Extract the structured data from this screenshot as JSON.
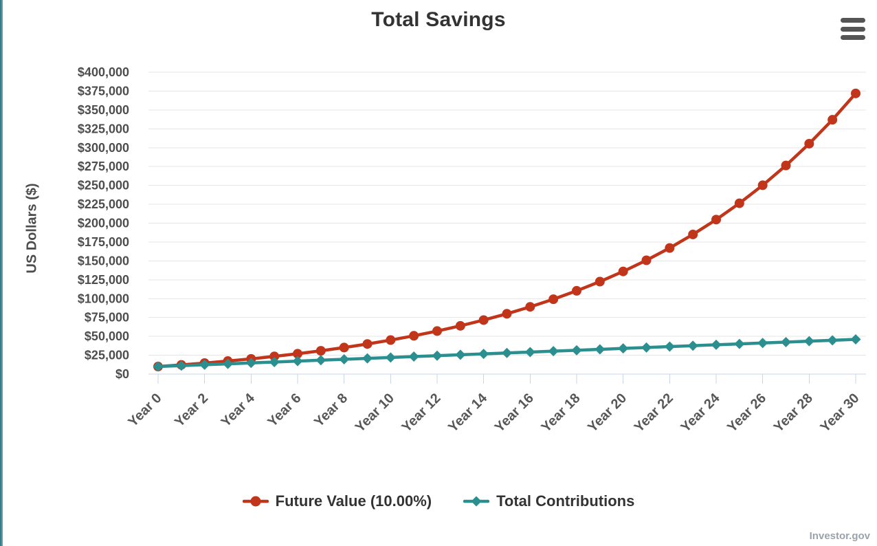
{
  "page": {
    "background": "#FFFFFF",
    "accent_stripe_color": "#2E8191",
    "credit": "Investor.gov"
  },
  "menu": {
    "label": "Chart context menu",
    "icon": "hamburger-icon",
    "bar_color": "#555555"
  },
  "chart_data": {
    "type": "line",
    "title": "Total Savings",
    "xlabel": "",
    "ylabel": "US Dollars ($)",
    "ylim": [
      0,
      400000
    ],
    "y_tick_step": 25000,
    "y_tick_prefix": "$",
    "x_tick_interval": 2,
    "grid": true,
    "legend_position": "bottom",
    "grid_color": "#E6E6E6",
    "axis_color": "#C9D4E7",
    "categories": [
      "Year 0",
      "Year 1",
      "Year 2",
      "Year 3",
      "Year 4",
      "Year 5",
      "Year 6",
      "Year 7",
      "Year 8",
      "Year 9",
      "Year 10",
      "Year 11",
      "Year 12",
      "Year 13",
      "Year 14",
      "Year 15",
      "Year 16",
      "Year 17",
      "Year 18",
      "Year 19",
      "Year 20",
      "Year 21",
      "Year 22",
      "Year 23",
      "Year 24",
      "Year 25",
      "Year 26",
      "Year 27",
      "Year 28",
      "Year 29",
      "Year 30"
    ],
    "series": [
      {
        "name": "Future Value (10.00%)",
        "color": "#C1351A",
        "marker": "circle",
        "values": [
          10000,
          12200,
          14620,
          17282,
          20210,
          23431,
          26974,
          30872,
          35159,
          39875,
          45062,
          50769,
          57045,
          63950,
          71545,
          79899,
          89089,
          99198,
          110318,
          122550,
          136005,
          150805,
          167086,
          184995,
          204694,
          226364,
          250200,
          276420,
          305262,
          336988,
          371887
        ]
      },
      {
        "name": "Total Contributions",
        "color": "#2B8F8F",
        "marker": "diamond",
        "values": [
          10000,
          11200,
          12400,
          13600,
          14800,
          16000,
          17200,
          18400,
          19600,
          20800,
          22000,
          23200,
          24400,
          25600,
          26800,
          28000,
          29200,
          30400,
          31600,
          32800,
          34000,
          35200,
          36400,
          37600,
          38800,
          40000,
          41200,
          42400,
          43600,
          44800,
          46000
        ]
      }
    ]
  }
}
